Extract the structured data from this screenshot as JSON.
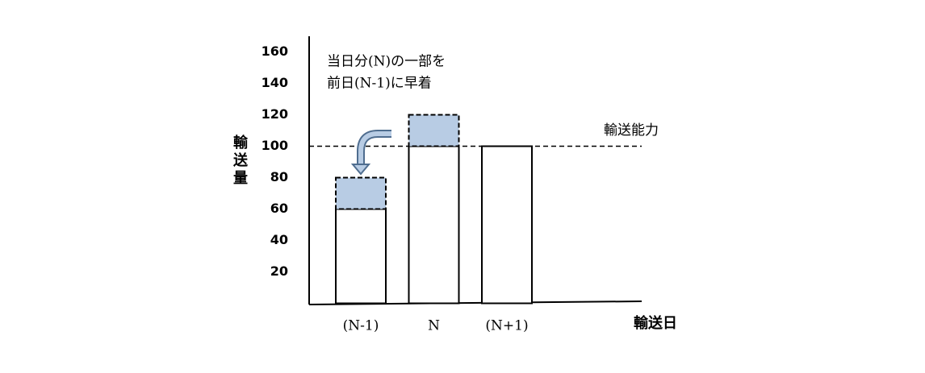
{
  "chart_data": {
    "type": "bar",
    "categories": [
      "(N-1)",
      "N",
      "(N+1)"
    ],
    "series": [
      {
        "color": "#ffffff",
        "values": [
          60,
          100,
          100
        ]
      },
      {
        "color": "#b8cce4",
        "values": [
          20,
          20,
          null
        ]
      }
    ],
    "ylim": [
      0,
      170
    ],
    "yticks": [
      20,
      40,
      60,
      80,
      100,
      120,
      140,
      160
    ],
    "ylabel": "輸送量",
    "xlabel": "輸送日",
    "capacity": {
      "value": 100,
      "label": "輸送能力"
    },
    "annotation": [
      "当日分(N)の一部を",
      "前日(N-1)に早着"
    ]
  }
}
